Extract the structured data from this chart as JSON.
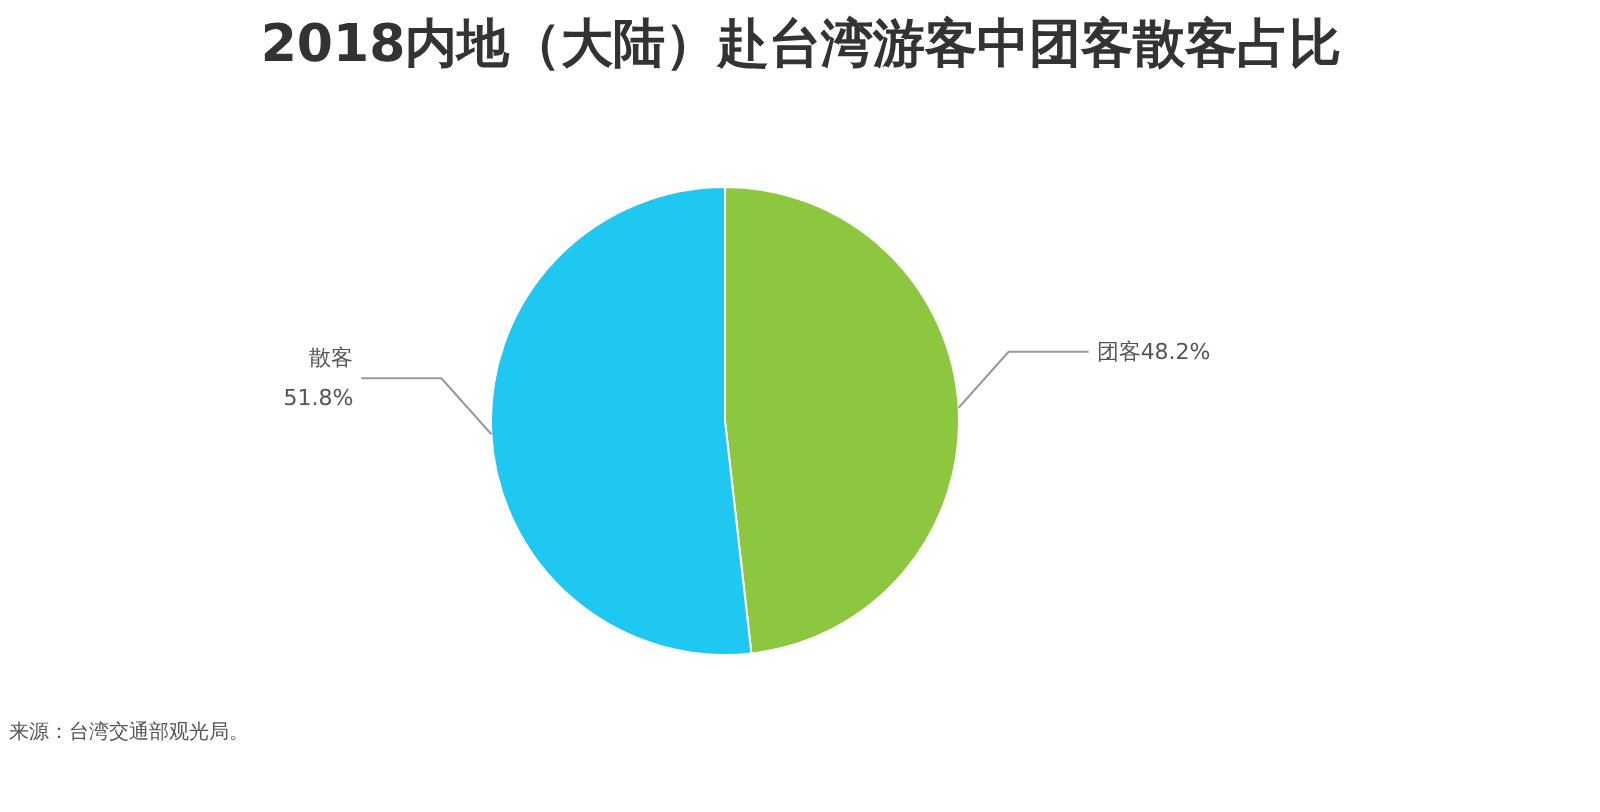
{
  "chart_data": {
    "type": "pie",
    "title": "2018内地（大陆）赴台湾游客中团客散客占比",
    "categories": [
      "团客",
      "散客"
    ],
    "values": [
      48.2,
      51.8
    ],
    "colors": [
      "#8dc63f",
      "#1ec8f0"
    ],
    "value_labels": [
      "48.2%",
      "51.8%"
    ],
    "annotations": [
      "来源：台湾交通部观光局。"
    ]
  }
}
